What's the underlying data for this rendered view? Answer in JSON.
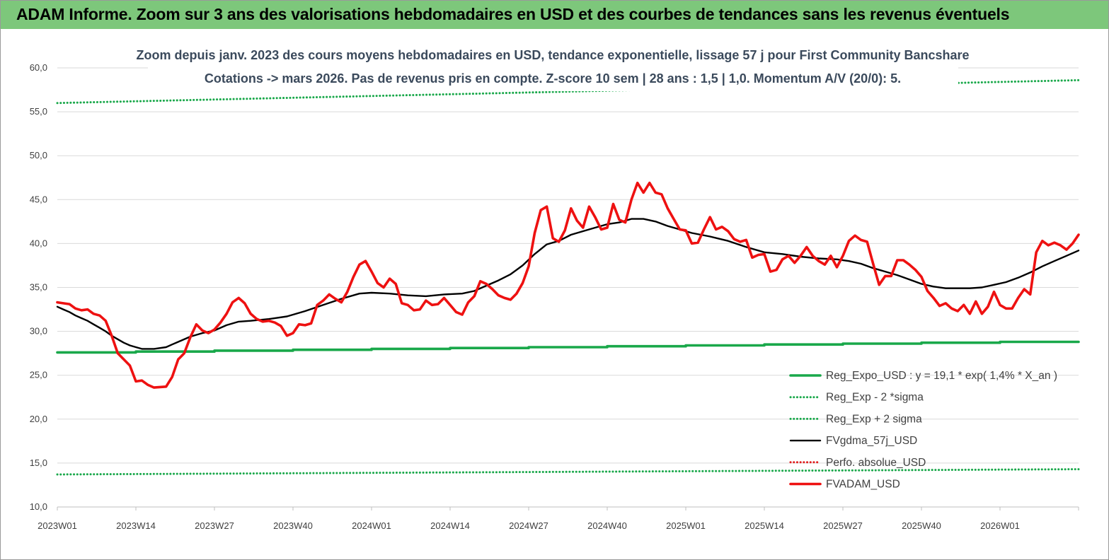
{
  "banner": {
    "title": "ADAM Informe. Zoom sur 3 ans des valorisations hebdomadaires en USD et des courbes de tendances sans les revenus éventuels"
  },
  "colors": {
    "banner": "#7dc77b",
    "regression": "#19a84a",
    "sigma": "#19a84a",
    "moving_average": "#000000",
    "perfo": "#e02020",
    "price": "#ee1111",
    "grid": "#d9d9d9"
  },
  "chart_data": {
    "type": "line",
    "title": "Zoom depuis janv. 2023 des cours moyens hebdomadaires en USD, tendance exponentielle, lissage 57 j pour First Community Bancshare",
    "subtitle": "Cotations -> mars 2026. Pas de revenus pris en  compte. Z-score 10 sem  | 28 ans : 1,5  | 1,0. Momentum A/V (20/0): 5.",
    "xlabel": "",
    "ylabel": "",
    "ylim": [
      10,
      60
    ],
    "yticks": [
      "10,0",
      "15,0",
      "20,0",
      "25,0",
      "30,0",
      "35,0",
      "40,0",
      "45,0",
      "50,0",
      "55,0",
      "60,0"
    ],
    "xticks": [
      "2023W01",
      "2023W14",
      "2023W27",
      "2023W40",
      "2024W01",
      "2024W14",
      "2024W27",
      "2024W40",
      "2025W01",
      "2025W14",
      "2025W27",
      "2025W40",
      "2026W01"
    ],
    "x_start": "2023W01",
    "x_end": "2026W14",
    "grid": "horizontal",
    "legend_position": "bottom-right",
    "series": [
      {
        "name": "Reg_Expo_USD : y = 19,1 * exp( 1,4% *  X_an )",
        "style": "solid-thick",
        "color": "#19a84a",
        "points": [
          [
            "2023W01",
            27.6
          ],
          [
            "2026W14",
            28.9
          ]
        ]
      },
      {
        "name": "Reg_Exp - 2 *sigma",
        "style": "dotted",
        "color": "#19a84a",
        "points": [
          [
            "2023W01",
            13.7
          ],
          [
            "2026W14",
            14.3
          ]
        ]
      },
      {
        "name": "Reg_Exp + 2 sigma",
        "style": "dotted",
        "color": "#19a84a",
        "points": [
          [
            "2023W01",
            56.0
          ],
          [
            "2026W14",
            58.6
          ]
        ]
      },
      {
        "name": "FVgdma_57j_USD",
        "style": "solid",
        "color": "#000000",
        "points": [
          [
            "2023W01",
            32.8
          ],
          [
            "2023W02",
            32.5
          ],
          [
            "2023W03",
            32.2
          ],
          [
            "2023W04",
            31.8
          ],
          [
            "2023W05",
            31.5
          ],
          [
            "2023W06",
            31.2
          ],
          [
            "2023W07",
            30.8
          ],
          [
            "2023W08",
            30.4
          ],
          [
            "2023W09",
            30.0
          ],
          [
            "2023W10",
            29.5
          ],
          [
            "2023W11",
            29.1
          ],
          [
            "2023W12",
            28.7
          ],
          [
            "2023W13",
            28.4
          ],
          [
            "2023W14",
            28.2
          ],
          [
            "2023W15",
            28.0
          ],
          [
            "2023W17",
            28.0
          ],
          [
            "2023W19",
            28.2
          ],
          [
            "2023W20",
            28.5
          ],
          [
            "2023W21",
            28.8
          ],
          [
            "2023W23",
            29.4
          ],
          [
            "2023W25",
            29.8
          ],
          [
            "2023W27",
            30.1
          ],
          [
            "2023W29",
            30.7
          ],
          [
            "2023W31",
            31.1
          ],
          [
            "2023W33",
            31.2
          ],
          [
            "2023W36",
            31.4
          ],
          [
            "2023W39",
            31.7
          ],
          [
            "2023W42",
            32.3
          ],
          [
            "2023W45",
            33.0
          ],
          [
            "2023W48",
            33.7
          ],
          [
            "2023W51",
            34.3
          ],
          [
            "2024W01",
            34.4
          ],
          [
            "2024W04",
            34.3
          ],
          [
            "2024W07",
            34.1
          ],
          [
            "2024W10",
            34.0
          ],
          [
            "2024W13",
            34.2
          ],
          [
            "2024W16",
            34.3
          ],
          [
            "2024W18",
            34.6
          ],
          [
            "2024W20",
            35.2
          ],
          [
            "2024W22",
            35.8
          ],
          [
            "2024W24",
            36.5
          ],
          [
            "2024W26",
            37.5
          ],
          [
            "2024W28",
            38.8
          ],
          [
            "2024W30",
            39.9
          ],
          [
            "2024W32",
            40.3
          ],
          [
            "2024W34",
            41.0
          ],
          [
            "2024W36",
            41.4
          ],
          [
            "2024W38",
            41.8
          ],
          [
            "2024W40",
            42.2
          ],
          [
            "2024W42",
            42.4
          ],
          [
            "2024W44",
            42.8
          ],
          [
            "2024W46",
            42.8
          ],
          [
            "2024W48",
            42.5
          ],
          [
            "2024W50",
            42.0
          ],
          [
            "2024W52",
            41.6
          ],
          [
            "2025W02",
            41.2
          ],
          [
            "2025W05",
            40.8
          ],
          [
            "2025W08",
            40.3
          ],
          [
            "2025W11",
            39.6
          ],
          [
            "2025W14",
            39.0
          ],
          [
            "2025W17",
            38.8
          ],
          [
            "2025W20",
            38.5
          ],
          [
            "2025W23",
            38.3
          ],
          [
            "2025W26",
            38.2
          ],
          [
            "2025W28",
            38.0
          ],
          [
            "2025W30",
            37.7
          ],
          [
            "2025W32",
            37.2
          ],
          [
            "2025W34",
            36.8
          ],
          [
            "2025W36",
            36.4
          ],
          [
            "2025W38",
            35.9
          ],
          [
            "2025W40",
            35.4
          ],
          [
            "2025W42",
            35.1
          ],
          [
            "2025W44",
            34.9
          ],
          [
            "2025W46",
            34.9
          ],
          [
            "2025W48",
            34.9
          ],
          [
            "2025W50",
            35.0
          ],
          [
            "2025W52",
            35.3
          ],
          [
            "2026W02",
            35.6
          ],
          [
            "2026W04",
            36.1
          ],
          [
            "2026W06",
            36.7
          ],
          [
            "2026W08",
            37.4
          ],
          [
            "2026W10",
            38.0
          ],
          [
            "2026W12",
            38.6
          ],
          [
            "2026W14",
            39.2
          ]
        ]
      },
      {
        "name": "Perfo. absolue_USD",
        "style": "dotted",
        "color": "#e02020",
        "points": []
      },
      {
        "name": "FVADAM_USD",
        "style": "solid-thick",
        "color": "#ee1111",
        "points": [
          [
            "2023W01",
            33.3
          ],
          [
            "2023W02",
            33.2
          ],
          [
            "2023W03",
            33.1
          ],
          [
            "2023W04",
            32.6
          ],
          [
            "2023W05",
            32.4
          ],
          [
            "2023W06",
            32.5
          ],
          [
            "2023W07",
            32.0
          ],
          [
            "2023W08",
            31.8
          ],
          [
            "2023W09",
            31.2
          ],
          [
            "2023W10",
            29.5
          ],
          [
            "2023W11",
            27.5
          ],
          [
            "2023W12",
            26.8
          ],
          [
            "2023W13",
            26.1
          ],
          [
            "2023W14",
            24.3
          ],
          [
            "2023W15",
            24.4
          ],
          [
            "2023W16",
            23.9
          ],
          [
            "2023W17",
            23.6
          ],
          [
            "2023W19",
            23.7
          ],
          [
            "2023W20",
            24.8
          ],
          [
            "2023W21",
            26.8
          ],
          [
            "2023W22",
            27.5
          ],
          [
            "2023W23",
            29.3
          ],
          [
            "2023W24",
            30.8
          ],
          [
            "2023W25",
            30.1
          ],
          [
            "2023W26",
            29.8
          ],
          [
            "2023W27",
            30.2
          ],
          [
            "2023W28",
            31.0
          ],
          [
            "2023W29",
            32.0
          ],
          [
            "2023W30",
            33.3
          ],
          [
            "2023W31",
            33.8
          ],
          [
            "2023W32",
            33.2
          ],
          [
            "2023W33",
            32.0
          ],
          [
            "2023W34",
            31.4
          ],
          [
            "2023W35",
            31.1
          ],
          [
            "2023W36",
            31.2
          ],
          [
            "2023W37",
            31.0
          ],
          [
            "2023W38",
            30.6
          ],
          [
            "2023W39",
            29.5
          ],
          [
            "2023W40",
            29.8
          ],
          [
            "2023W41",
            30.8
          ],
          [
            "2023W42",
            30.7
          ],
          [
            "2023W43",
            30.9
          ],
          [
            "2023W44",
            33.0
          ],
          [
            "2023W45",
            33.5
          ],
          [
            "2023W46",
            34.2
          ],
          [
            "2023W47",
            33.7
          ],
          [
            "2023W48",
            33.3
          ],
          [
            "2023W49",
            34.5
          ],
          [
            "2023W50",
            36.2
          ],
          [
            "2023W51",
            37.6
          ],
          [
            "2023W52",
            38.0
          ],
          [
            "2024W01",
            36.8
          ],
          [
            "2024W02",
            35.5
          ],
          [
            "2024W03",
            35.0
          ],
          [
            "2024W04",
            36.0
          ],
          [
            "2024W05",
            35.4
          ],
          [
            "2024W06",
            33.2
          ],
          [
            "2024W07",
            33.0
          ],
          [
            "2024W08",
            32.4
          ],
          [
            "2024W09",
            32.5
          ],
          [
            "2024W10",
            33.5
          ],
          [
            "2024W11",
            33.0
          ],
          [
            "2024W12",
            33.1
          ],
          [
            "2024W13",
            33.8
          ],
          [
            "2024W14",
            33.0
          ],
          [
            "2024W15",
            32.2
          ],
          [
            "2024W16",
            31.9
          ],
          [
            "2024W17",
            33.3
          ],
          [
            "2024W18",
            34.0
          ],
          [
            "2024W19",
            35.7
          ],
          [
            "2024W20",
            35.4
          ],
          [
            "2024W21",
            34.8
          ],
          [
            "2024W22",
            34.1
          ],
          [
            "2024W23",
            33.8
          ],
          [
            "2024W24",
            33.6
          ],
          [
            "2024W25",
            34.3
          ],
          [
            "2024W26",
            35.5
          ],
          [
            "2024W27",
            37.4
          ],
          [
            "2024W28",
            41.2
          ],
          [
            "2024W29",
            43.8
          ],
          [
            "2024W30",
            44.2
          ],
          [
            "2024W31",
            40.6
          ],
          [
            "2024W32",
            40.2
          ],
          [
            "2024W33",
            41.5
          ],
          [
            "2024W34",
            44.0
          ],
          [
            "2024W35",
            42.6
          ],
          [
            "2024W36",
            41.8
          ],
          [
            "2024W37",
            44.2
          ],
          [
            "2024W38",
            43.0
          ],
          [
            "2024W39",
            41.6
          ],
          [
            "2024W40",
            41.8
          ],
          [
            "2024W41",
            44.5
          ],
          [
            "2024W42",
            42.7
          ],
          [
            "2024W43",
            42.4
          ],
          [
            "2024W44",
            45.0
          ],
          [
            "2024W45",
            46.9
          ],
          [
            "2024W46",
            45.8
          ],
          [
            "2024W47",
            46.9
          ],
          [
            "2024W48",
            45.8
          ],
          [
            "2024W49",
            45.6
          ],
          [
            "2024W50",
            44.0
          ],
          [
            "2024W51",
            42.8
          ],
          [
            "2024W52",
            41.6
          ],
          [
            "2025W01",
            41.5
          ],
          [
            "2025W02",
            40.0
          ],
          [
            "2025W03",
            40.1
          ],
          [
            "2025W04",
            41.6
          ],
          [
            "2025W05",
            43.0
          ],
          [
            "2025W06",
            41.6
          ],
          [
            "2025W07",
            41.9
          ],
          [
            "2025W08",
            41.4
          ],
          [
            "2025W09",
            40.5
          ],
          [
            "2025W10",
            40.2
          ],
          [
            "2025W11",
            40.4
          ],
          [
            "2025W12",
            38.4
          ],
          [
            "2025W13",
            38.7
          ],
          [
            "2025W14",
            38.8
          ],
          [
            "2025W15",
            36.8
          ],
          [
            "2025W16",
            37.0
          ],
          [
            "2025W17",
            38.2
          ],
          [
            "2025W18",
            38.6
          ],
          [
            "2025W19",
            37.8
          ],
          [
            "2025W20",
            38.6
          ],
          [
            "2025W21",
            39.6
          ],
          [
            "2025W22",
            38.6
          ],
          [
            "2025W23",
            38.0
          ],
          [
            "2025W24",
            37.6
          ],
          [
            "2025W25",
            38.6
          ],
          [
            "2025W26",
            37.3
          ],
          [
            "2025W27",
            38.6
          ],
          [
            "2025W28",
            40.3
          ],
          [
            "2025W29",
            40.9
          ],
          [
            "2025W30",
            40.4
          ],
          [
            "2025W31",
            40.2
          ],
          [
            "2025W32",
            37.7
          ],
          [
            "2025W33",
            35.3
          ],
          [
            "2025W34",
            36.3
          ],
          [
            "2025W35",
            36.3
          ],
          [
            "2025W36",
            38.1
          ],
          [
            "2025W37",
            38.1
          ],
          [
            "2025W38",
            37.6
          ],
          [
            "2025W39",
            37.0
          ],
          [
            "2025W40",
            36.2
          ],
          [
            "2025W41",
            34.6
          ],
          [
            "2025W42",
            33.8
          ],
          [
            "2025W43",
            32.9
          ],
          [
            "2025W44",
            33.2
          ],
          [
            "2025W45",
            32.6
          ],
          [
            "2025W46",
            32.3
          ],
          [
            "2025W47",
            33.0
          ],
          [
            "2025W48",
            32.0
          ],
          [
            "2025W49",
            33.4
          ],
          [
            "2025W50",
            32.0
          ],
          [
            "2025W51",
            32.8
          ],
          [
            "2025W52",
            34.5
          ],
          [
            "2026W01",
            33.0
          ],
          [
            "2026W02",
            32.6
          ],
          [
            "2026W03",
            32.6
          ],
          [
            "2026W04",
            33.8
          ],
          [
            "2026W05",
            34.8
          ],
          [
            "2026W06",
            34.2
          ],
          [
            "2026W07",
            39.0
          ],
          [
            "2026W08",
            40.3
          ],
          [
            "2026W09",
            39.8
          ],
          [
            "2026W10",
            40.1
          ],
          [
            "2026W11",
            39.8
          ],
          [
            "2026W12",
            39.3
          ],
          [
            "2026W13",
            40.0
          ],
          [
            "2026W14",
            41.0
          ]
        ]
      }
    ]
  }
}
